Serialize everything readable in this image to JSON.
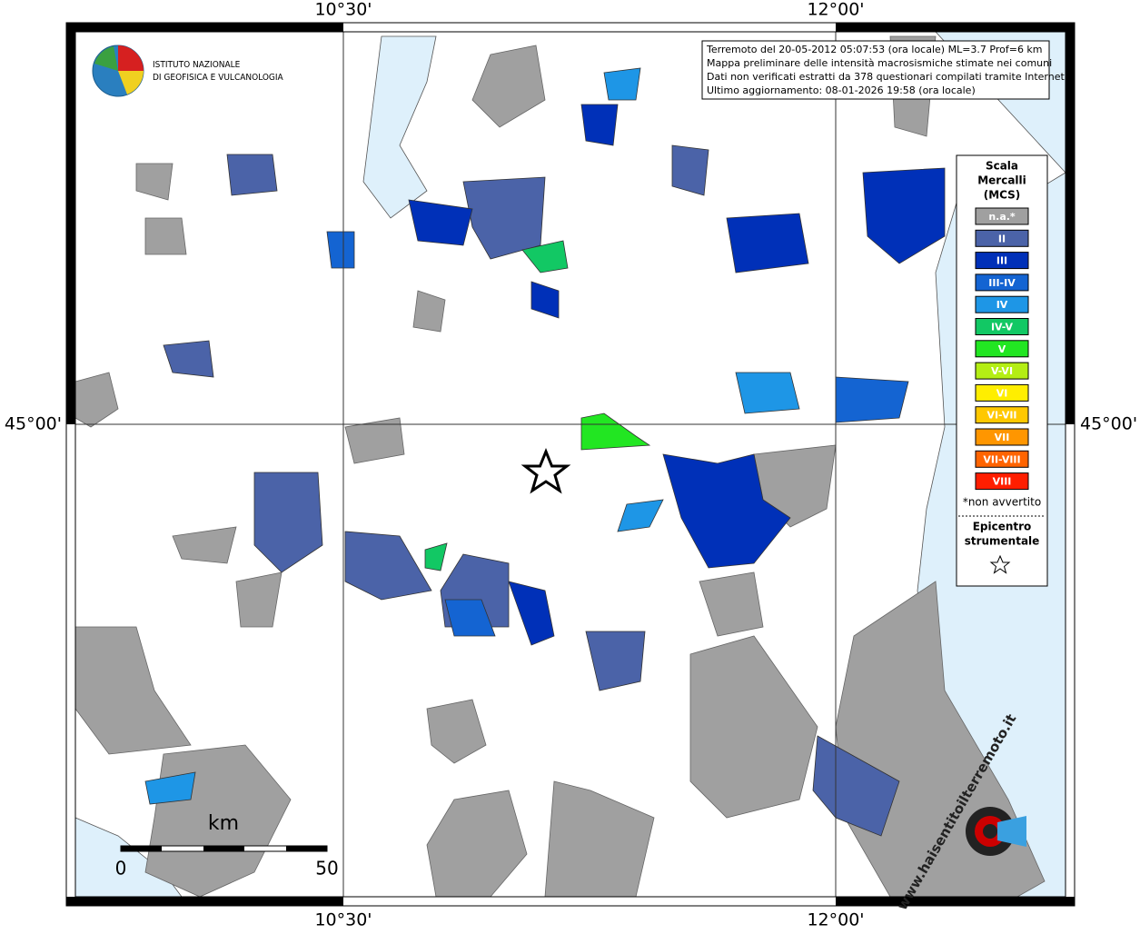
{
  "header": {
    "org_line1": "ISTITUTO NAZIONALE",
    "org_line2": "DI GEOFISICA E VULCANOLOGIA"
  },
  "axes": {
    "lon_labels": [
      "10°30'",
      "12°00'"
    ],
    "lat_labels": [
      "45°00'"
    ]
  },
  "info": {
    "lines": [
      "Terremoto del 20-05-2012 05:07:53 (ora locale) ML=3.7 Prof=6 km",
      "Mappa preliminare delle intensità macrosismiche stimate nei comuni",
      "Dati non verificati estratti da 378 questionari compilati tramite Internet.",
      "Ultimo aggiornamento: 08-01-2026 19:58 (ora locale)"
    ]
  },
  "legend": {
    "title": [
      "Scala",
      "Mercalli",
      "(MCS)"
    ],
    "items": [
      {
        "label": "n.a.*",
        "color": "#a0a0a0"
      },
      {
        "label": "II",
        "color": "#4b63a8"
      },
      {
        "label": "III",
        "color": "#0030b8"
      },
      {
        "label": "III-IV",
        "color": "#1464d2"
      },
      {
        "label": "IV",
        "color": "#1e96e6"
      },
      {
        "label": "IV-V",
        "color": "#12c864"
      },
      {
        "label": "V",
        "color": "#22e622"
      },
      {
        "label": "V-VI",
        "color": "#b4ee14"
      },
      {
        "label": "VI",
        "color": "#ffee00"
      },
      {
        "label": "VI-VII",
        "color": "#ffc800"
      },
      {
        "label": "VII",
        "color": "#ff9600"
      },
      {
        "label": "VII-VIII",
        "color": "#ff6400"
      },
      {
        "label": "VIII",
        "color": "#ff1e00"
      }
    ],
    "note": "*non avvertito",
    "epicenter": [
      "Epicentro",
      "strumentale"
    ]
  },
  "scale": {
    "unit": "km",
    "start": "0",
    "end": "50"
  },
  "watermark": "www.haisentitoilterremoto.it"
}
